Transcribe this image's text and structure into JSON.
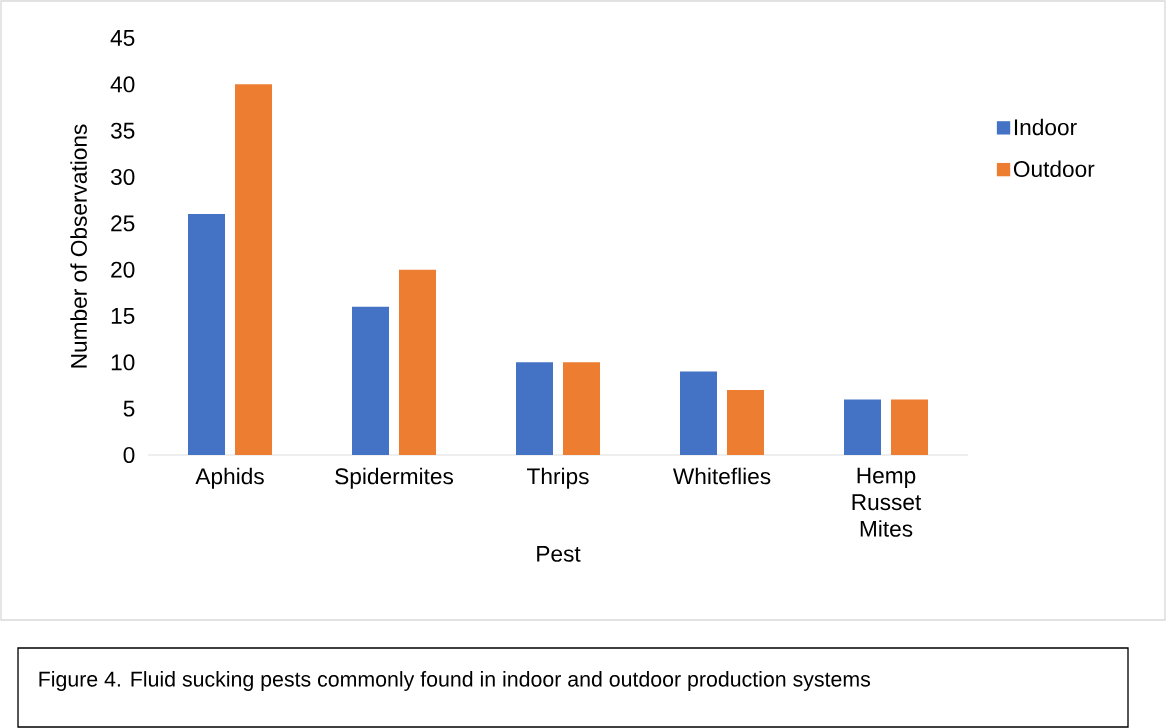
{
  "chart_data": {
    "type": "bar",
    "xlabel": "Pest",
    "ylabel": "Number of Observations",
    "categories": [
      "Aphids",
      "Spidermites",
      "Thrips",
      "Whiteflies",
      "Hemp Russet Mites"
    ],
    "series": [
      {
        "name": "Indoor",
        "color": "#4472c4",
        "values": [
          26,
          16,
          10,
          9,
          6
        ]
      },
      {
        "name": "Outdoor",
        "color": "#ed7d31",
        "values": [
          40,
          20,
          10,
          7,
          6
        ]
      }
    ],
    "ylim": [
      0,
      45
    ],
    "yticks": [
      0,
      5,
      10,
      15,
      20,
      25,
      30,
      35,
      40,
      45
    ],
    "legend": "right",
    "annotations": [
      "Figure 4. Fluid sucking pests commonly found in indoor and outdoor production systems"
    ]
  }
}
